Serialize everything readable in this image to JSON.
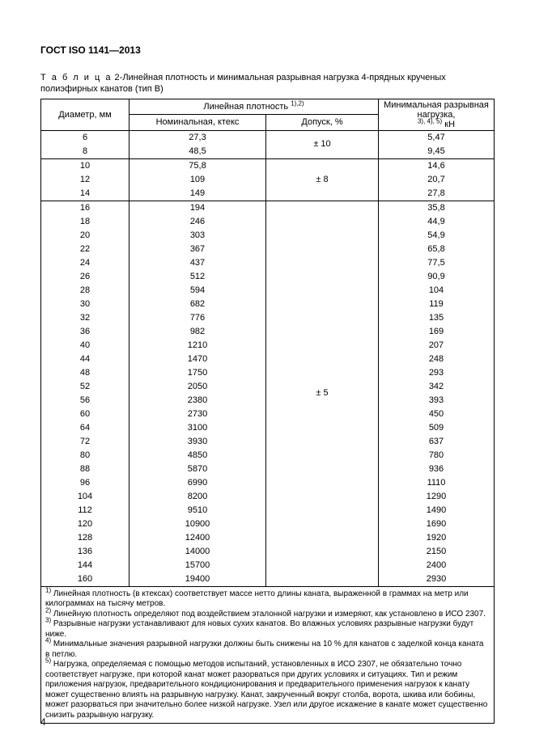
{
  "standard": "ГОСТ ISO 1141—2013",
  "caption_label": "Т а б л и ц а",
  "caption_num": "2",
  "caption_text": "-Линейная плотность и минимальная разрывная нагрузка 4-прядных крученых полиэфирных канатов (тип B)",
  "headers": {
    "diameter": "Диаметр, мм",
    "density_group": "Линейная плотность",
    "density_sup": "1),2)",
    "nominal": "Номинальная, ктекс",
    "tolerance": "Допуск, %",
    "break": "Минимальная  разрывная нагрузка,",
    "break_sup": "3), 4), 5)",
    "break_unit": " кН"
  },
  "groups": [
    {
      "tolerance": "± 10",
      "rows": [
        {
          "d": "6",
          "n": "27,3",
          "b": "5,47"
        },
        {
          "d": "8",
          "n": "48,5",
          "b": "9,45"
        }
      ]
    },
    {
      "tolerance": "± 8",
      "rows": [
        {
          "d": "10",
          "n": "75,8",
          "b": "14,6"
        },
        {
          "d": "12",
          "n": "109",
          "b": "20,7"
        },
        {
          "d": "14",
          "n": "149",
          "b": "27,8"
        }
      ]
    },
    {
      "tolerance": "± 5",
      "rows": [
        {
          "d": "16",
          "n": "194",
          "b": "35,8"
        },
        {
          "d": "18",
          "n": "246",
          "b": "44,9"
        },
        {
          "d": "20",
          "n": "303",
          "b": "54,9"
        },
        {
          "d": "22",
          "n": "367",
          "b": "65,8"
        },
        {
          "d": "24",
          "n": "437",
          "b": "77,5"
        },
        {
          "d": "26",
          "n": "512",
          "b": "90,9"
        },
        {
          "d": "28",
          "n": "594",
          "b": "104"
        },
        {
          "d": "30",
          "n": "682",
          "b": "119"
        },
        {
          "d": "32",
          "n": "776",
          "b": "135"
        },
        {
          "d": "36",
          "n": "982",
          "b": "169"
        },
        {
          "d": "40",
          "n": "1210",
          "b": "207"
        },
        {
          "d": "44",
          "n": "1470",
          "b": "248"
        },
        {
          "d": "48",
          "n": "1750",
          "b": "293"
        },
        {
          "d": "52",
          "n": "2050",
          "b": "342"
        },
        {
          "d": "56",
          "n": "2380",
          "b": "393"
        },
        {
          "d": "60",
          "n": "2730",
          "b": "450"
        },
        {
          "d": "64",
          "n": "3100",
          "b": "509"
        },
        {
          "d": "72",
          "n": "3930",
          "b": "637"
        },
        {
          "d": "80",
          "n": "4850",
          "b": "780"
        },
        {
          "d": "88",
          "n": "5870",
          "b": "936"
        },
        {
          "d": "96",
          "n": "6990",
          "b": "1110"
        },
        {
          "d": "104",
          "n": "8200",
          "b": "1290"
        },
        {
          "d": "112",
          "n": "9510",
          "b": "1490"
        },
        {
          "d": "120",
          "n": "10900",
          "b": "1690"
        },
        {
          "d": "128",
          "n": "12400",
          "b": "1920"
        },
        {
          "d": "136",
          "n": "14000",
          "b": "2150"
        },
        {
          "d": "144",
          "n": "15700",
          "b": "2400"
        },
        {
          "d": "160",
          "n": "19400",
          "b": "2930"
        }
      ]
    }
  ],
  "footnotes": {
    "n1": "Линейная плотность (в ктексах) соответствует массе нетто длины каната, выраженной в граммах на метр или килограммах на тысячу метров.",
    "n2": "Линейную плотность определяют под воздействием эталонной нагрузки и измеряют, как установлено в ИСО 2307.",
    "n3": "Разрывные нагрузки устанавливают для новых сухих канатов. Во влажных условиях разрывные нагрузки будут ниже.",
    "n4": "Минимальные значения разрывной нагрузки должны быть снижены на 10 % для канатов с заделкой конца каната в петлю.",
    "n5": "Нагрузка, определяемая с помощью методов испытаний, установленных в ИСО 2307, не обязательно точно соответствует нагрузке, при которой канат может разорваться при других условиях и ситуациях. Тип и режим приложения нагрузок, предварительного кондиционирования и предварительного применения нагрузок к канату может существенно влиять на разрывную нагрузку. Канат, закрученный вокруг столба, ворота, шкива или бобины, может разорваться при значительно более низкой нагрузке. Узел или другое искажение в канате может существенно снизить разрывную нагрузку."
  },
  "page_number": "4"
}
